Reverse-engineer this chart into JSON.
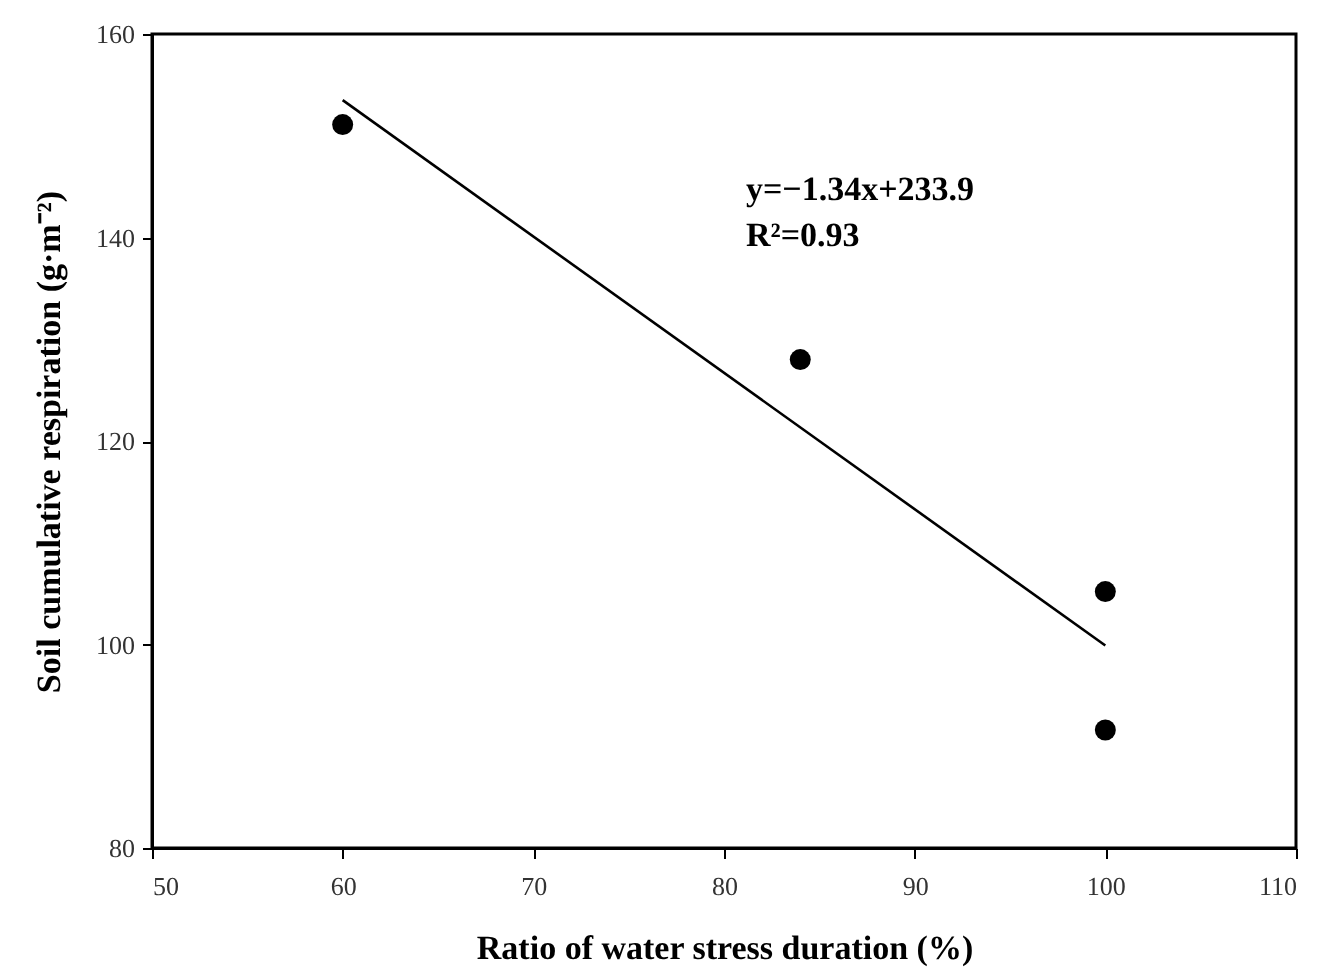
{
  "chart_data": {
    "type": "scatter",
    "xlabel": "Ratio of water stress duration (%)",
    "ylabel": "Soil cumulative respiration (g·m⁻²)",
    "series": [
      {
        "color": "#000000",
        "marker": "circle",
        "x": [
          60,
          84,
          100,
          100
        ],
        "values": [
          151.1,
          128.0,
          105.2,
          91.6
        ]
      },
      {
        "type": "line",
        "color": "#000000",
        "marker": "none",
        "x": [
          60,
          100
        ],
        "values": [
          153.5,
          99.9
        ]
      }
    ],
    "annotations": [
      "y=−1.34x+233.9",
      "R²=0.93"
    ],
    "xlim": [
      50,
      110
    ],
    "xticks": [
      50,
      60,
      70,
      80,
      90,
      100,
      110
    ],
    "ylim": [
      80,
      160
    ],
    "yticks": [
      80,
      100,
      120,
      140,
      160
    ],
    "grid": false,
    "line_style": "solid"
  }
}
